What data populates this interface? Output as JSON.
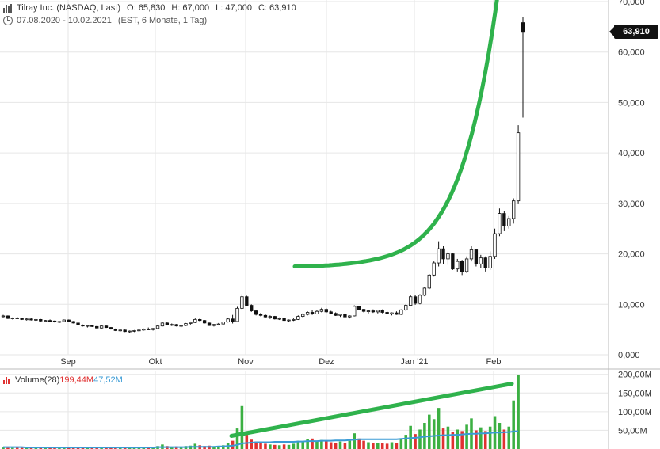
{
  "header": {
    "title": "Tilray Inc. (NASDAQ, Last)",
    "ohlc": {
      "open_label": "O:",
      "open": "65,830",
      "high_label": "H:",
      "high": "67,000",
      "low_label": "L:",
      "low": "47,000",
      "close_label": "C:",
      "close": "63,910"
    },
    "range": "07.08.2020 - 10.02.2021",
    "range_info": "(EST, 6 Monate, 1 Tag)"
  },
  "last_price_label": "63,910",
  "volume_panel": {
    "title": "Volume(28)",
    "value1": "199,44M",
    "value2": "47,52M"
  },
  "colors": {
    "up": "#3cb043",
    "down": "#e03131",
    "trend": "#2fb24c",
    "avg": "#3a9bd5",
    "grid": "#e6e6e6",
    "candle": "#111111"
  },
  "icons": [
    "chart-bars-icon",
    "clock-icon"
  ],
  "chart_data": [
    {
      "type": "candlestick",
      "title": "Tilray Inc. (NASDAQ, Last)",
      "x_tick_labels": [
        "Sep",
        "Okt",
        "Nov",
        "Dez",
        "Jan '21",
        "Feb"
      ],
      "y_tick_labels": [
        "0,000",
        "10,000",
        "20,000",
        "30,000",
        "40,000",
        "50,000",
        "60,000",
        "70,000"
      ],
      "ylim": [
        0,
        70
      ],
      "y_ticks": [
        0,
        10,
        20,
        30,
        40,
        50,
        60,
        70
      ],
      "grid": true,
      "trendline_note": "green exponential curve drawn above price",
      "series": [
        {
          "name": "price",
          "ohlc": [
            [
              7.6,
              7.9,
              7.4,
              7.7
            ],
            [
              7.7,
              7.8,
              7.1,
              7.2
            ],
            [
              7.2,
              7.4,
              7.0,
              7.3
            ],
            [
              7.3,
              7.5,
              7.1,
              7.2
            ],
            [
              7.2,
              7.3,
              6.9,
              7.0
            ],
            [
              7.0,
              7.2,
              6.8,
              7.1
            ],
            [
              7.1,
              7.2,
              6.8,
              6.9
            ],
            [
              6.9,
              7.1,
              6.7,
              7.0
            ],
            [
              7.0,
              7.1,
              6.6,
              6.7
            ],
            [
              6.7,
              6.9,
              6.5,
              6.8
            ],
            [
              6.8,
              7.0,
              6.6,
              6.7
            ],
            [
              6.7,
              6.8,
              6.4,
              6.5
            ],
            [
              6.5,
              6.7,
              6.3,
              6.6
            ],
            [
              6.6,
              7.0,
              6.5,
              6.9
            ],
            [
              6.9,
              7.0,
              6.5,
              6.6
            ],
            [
              6.6,
              6.7,
              6.2,
              6.3
            ],
            [
              6.3,
              6.4,
              5.8,
              5.9
            ],
            [
              5.9,
              6.0,
              5.6,
              5.7
            ],
            [
              5.7,
              5.9,
              5.4,
              5.8
            ],
            [
              5.8,
              5.9,
              5.5,
              5.6
            ],
            [
              5.6,
              5.7,
              5.2,
              5.3
            ],
            [
              5.3,
              5.8,
              5.2,
              5.7
            ],
            [
              5.7,
              5.8,
              5.3,
              5.4
            ],
            [
              5.4,
              5.5,
              5.0,
              5.1
            ],
            [
              5.1,
              5.2,
              4.7,
              4.8
            ],
            [
              4.8,
              5.0,
              4.6,
              4.9
            ],
            [
              4.9,
              5.0,
              4.5,
              4.6
            ],
            [
              4.6,
              4.8,
              4.4,
              4.7
            ],
            [
              4.7,
              4.9,
              4.5,
              4.8
            ],
            [
              4.8,
              5.0,
              4.6,
              4.9
            ],
            [
              4.9,
              5.2,
              4.8,
              5.1
            ],
            [
              5.1,
              5.4,
              4.9,
              5.0
            ],
            [
              5.0,
              5.3,
              4.8,
              5.2
            ],
            [
              5.2,
              5.8,
              5.1,
              5.7
            ],
            [
              5.7,
              6.5,
              5.6,
              6.3
            ],
            [
              6.3,
              6.5,
              5.8,
              5.9
            ],
            [
              5.9,
              6.2,
              5.7,
              6.0
            ],
            [
              6.0,
              6.1,
              5.6,
              5.7
            ],
            [
              5.7,
              5.9,
              5.4,
              5.8
            ],
            [
              5.8,
              6.3,
              5.7,
              6.2
            ],
            [
              6.2,
              6.6,
              6.0,
              6.4
            ],
            [
              6.4,
              7.2,
              6.3,
              7.0
            ],
            [
              7.0,
              7.3,
              6.6,
              6.8
            ],
            [
              6.8,
              6.9,
              6.2,
              6.3
            ],
            [
              6.3,
              6.4,
              5.7,
              5.8
            ],
            [
              5.8,
              6.1,
              5.6,
              6.0
            ],
            [
              6.0,
              6.3,
              5.8,
              6.1
            ],
            [
              6.1,
              6.6,
              6.0,
              6.5
            ],
            [
              6.5,
              7.3,
              6.4,
              7.1
            ],
            [
              7.1,
              7.9,
              6.2,
              6.6
            ],
            [
              6.6,
              9.5,
              6.5,
              9.2
            ],
            [
              9.2,
              12.0,
              9.0,
              11.5
            ],
            [
              11.5,
              11.7,
              9.6,
              9.8
            ],
            [
              9.8,
              10.0,
              8.5,
              8.7
            ],
            [
              8.7,
              8.9,
              7.8,
              8.0
            ],
            [
              8.0,
              8.3,
              7.6,
              7.8
            ],
            [
              7.8,
              8.0,
              7.3,
              7.5
            ],
            [
              7.5,
              7.8,
              7.1,
              7.6
            ],
            [
              7.6,
              7.7,
              7.0,
              7.1
            ],
            [
              7.1,
              7.4,
              6.9,
              7.2
            ],
            [
              7.2,
              7.3,
              6.7,
              6.8
            ],
            [
              6.8,
              7.0,
              6.5,
              6.9
            ],
            [
              6.9,
              7.2,
              6.7,
              7.0
            ],
            [
              7.0,
              7.8,
              6.9,
              7.6
            ],
            [
              7.6,
              8.2,
              7.4,
              8.0
            ],
            [
              8.0,
              8.6,
              7.8,
              8.4
            ],
            [
              8.4,
              8.9,
              7.9,
              8.1
            ],
            [
              8.1,
              8.8,
              8.0,
              8.6
            ],
            [
              8.6,
              9.3,
              8.4,
              9.0
            ],
            [
              9.0,
              9.2,
              8.3,
              8.5
            ],
            [
              8.5,
              8.7,
              8.0,
              8.2
            ],
            [
              8.2,
              8.4,
              7.7,
              7.8
            ],
            [
              7.8,
              8.1,
              7.5,
              8.0
            ],
            [
              8.0,
              8.2,
              7.4,
              7.5
            ],
            [
              7.5,
              7.8,
              7.2,
              7.7
            ],
            [
              7.7,
              9.8,
              7.6,
              9.6
            ],
            [
              9.6,
              9.7,
              8.9,
              9.0
            ],
            [
              9.0,
              9.1,
              8.4,
              8.6
            ],
            [
              8.6,
              8.8,
              8.2,
              8.7
            ],
            [
              8.7,
              9.0,
              8.3,
              8.5
            ],
            [
              8.5,
              8.9,
              8.2,
              8.8
            ],
            [
              8.8,
              9.0,
              8.2,
              8.4
            ],
            [
              8.4,
              8.6,
              8.0,
              8.1
            ],
            [
              8.1,
              8.4,
              7.8,
              8.3
            ],
            [
              8.3,
              8.6,
              7.9,
              8.0
            ],
            [
              8.0,
              9.0,
              7.9,
              8.9
            ],
            [
              8.9,
              10.0,
              8.7,
              9.8
            ],
            [
              9.8,
              11.8,
              9.6,
              11.5
            ],
            [
              11.5,
              11.8,
              9.9,
              10.2
            ],
            [
              10.2,
              12.0,
              10.0,
              11.8
            ],
            [
              11.8,
              13.5,
              11.6,
              13.2
            ],
            [
              13.2,
              16.0,
              13.0,
              15.8
            ],
            [
              15.8,
              18.5,
              15.5,
              18.2
            ],
            [
              18.2,
              22.5,
              17.5,
              21.0
            ],
            [
              21.0,
              21.5,
              18.0,
              19.0
            ],
            [
              19.0,
              20.5,
              17.8,
              20.0
            ],
            [
              20.0,
              20.2,
              16.8,
              17.0
            ],
            [
              17.0,
              19.0,
              16.5,
              18.5
            ],
            [
              18.5,
              18.8,
              15.8,
              16.5
            ],
            [
              16.5,
              19.5,
              16.2,
              19.0
            ],
            [
              19.0,
              21.5,
              18.5,
              20.8
            ],
            [
              20.8,
              21.0,
              17.5,
              18.0
            ],
            [
              18.0,
              19.8,
              17.2,
              19.2
            ],
            [
              19.2,
              19.5,
              16.5,
              17.2
            ],
            [
              17.2,
              20.5,
              16.8,
              19.5
            ],
            [
              19.5,
              25.0,
              19.0,
              24.0
            ],
            [
              24.0,
              29.0,
              23.5,
              28.0
            ],
            [
              28.0,
              28.5,
              24.5,
              25.5
            ],
            [
              25.5,
              27.5,
              25.0,
              27.0
            ],
            [
              27.0,
              31.0,
              26.0,
              30.5
            ],
            [
              30.5,
              45.5,
              30.0,
              44.0
            ],
            [
              65.83,
              67.0,
              47.0,
              63.91
            ]
          ]
        }
      ]
    },
    {
      "type": "bar",
      "title": "Volume(28)",
      "y_tick_labels": [
        "50,00M",
        "100,00M",
        "150,00M",
        "200,00M"
      ],
      "ylim": [
        0,
        210
      ],
      "y_ticks": [
        50,
        100,
        150,
        200
      ],
      "series": [
        {
          "name": "Volume(28)",
          "values": [
            4,
            3,
            3,
            4,
            3,
            3,
            3,
            3,
            4,
            3,
            3,
            3,
            3,
            4,
            3,
            3,
            4,
            4,
            3,
            3,
            4,
            3,
            3,
            4,
            5,
            4,
            4,
            5,
            4,
            4,
            5,
            6,
            5,
            8,
            12,
            8,
            6,
            7,
            6,
            8,
            9,
            14,
            10,
            8,
            9,
            7,
            8,
            10,
            16,
            22,
            55,
            115,
            38,
            25,
            20,
            16,
            14,
            12,
            11,
            10,
            12,
            11,
            14,
            22,
            18,
            26,
            28,
            20,
            24,
            22,
            18,
            16,
            20,
            17,
            22,
            42,
            28,
            22,
            18,
            17,
            16,
            15,
            14,
            18,
            16,
            26,
            38,
            62,
            40,
            52,
            70,
            92,
            80,
            110,
            55,
            60,
            45,
            52,
            48,
            65,
            82,
            50,
            58,
            48,
            60,
            88,
            70,
            52,
            60,
            130,
            199.44
          ],
          "avg": [
            5,
            5,
            5,
            5,
            5,
            4,
            4,
            4,
            4,
            4,
            4,
            4,
            4,
            4,
            4,
            4,
            4,
            4,
            4,
            4,
            4,
            4,
            4,
            4,
            4,
            4,
            4,
            4,
            4,
            4,
            4,
            4,
            4,
            5,
            5,
            5,
            5,
            5,
            5,
            5,
            6,
            6,
            6,
            6,
            6,
            6,
            7,
            7,
            8,
            9,
            11,
            15,
            16,
            17,
            18,
            18,
            18,
            18,
            19,
            19,
            19,
            19,
            19,
            20,
            20,
            21,
            21,
            21,
            22,
            22,
            22,
            23,
            23,
            23,
            24,
            25,
            26,
            26,
            26,
            26,
            26,
            26,
            26,
            26,
            26,
            27,
            28,
            29,
            30,
            31,
            33,
            34,
            35,
            36,
            37,
            37,
            38,
            38,
            39,
            40,
            41,
            41,
            42,
            42,
            43,
            44,
            44,
            45,
            45,
            47,
            47.52
          ]
        }
      ]
    }
  ]
}
